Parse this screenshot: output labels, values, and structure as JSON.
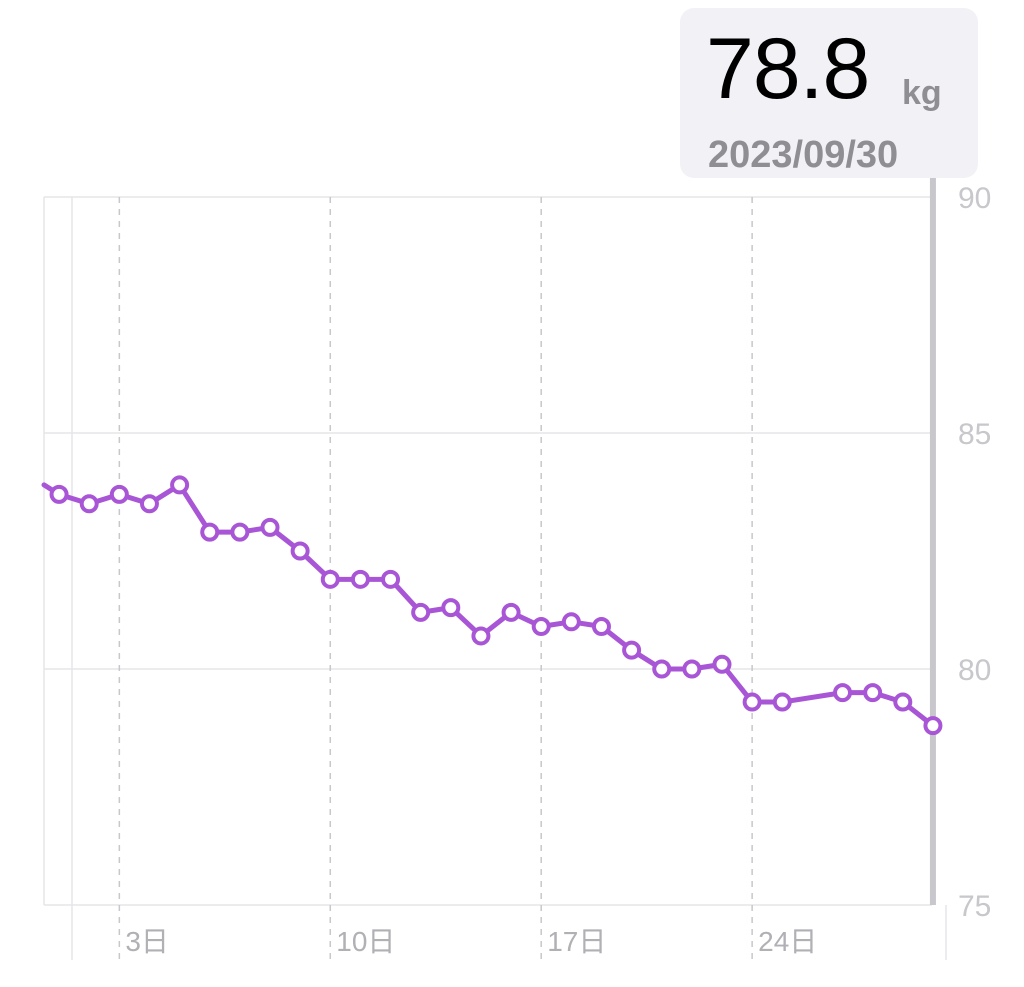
{
  "tooltip": {
    "value": "78.8",
    "unit": "kg",
    "date": "2023/09/30"
  },
  "colors": {
    "series": "#a855d6",
    "grid": "#e5e5ea",
    "dashed_grid": "#c7c7cc",
    "selection_line": "#c7c7cc"
  },
  "chart_data": {
    "type": "line",
    "x_axis_labels": [
      {
        "day": 3,
        "label": "3日"
      },
      {
        "day": 10,
        "label": "10日"
      },
      {
        "day": 17,
        "label": "17日"
      },
      {
        "day": 24,
        "label": "24日"
      }
    ],
    "xlim": [
      0.5,
      30.5
    ],
    "ylim": [
      75,
      90
    ],
    "y_ticks": [
      75,
      80,
      85,
      90
    ],
    "y_axis_position": "right",
    "selected_day": 30,
    "series": [
      {
        "x": [
          1,
          2,
          3,
          4,
          5,
          6,
          7,
          8,
          9,
          10,
          11,
          12,
          13,
          14,
          15,
          16,
          17,
          18,
          19,
          20,
          21,
          22,
          23,
          24,
          25,
          27,
          28,
          29,
          30
        ],
        "y": [
          83.7,
          83.5,
          83.7,
          83.5,
          83.9,
          82.9,
          82.9,
          83.0,
          82.5,
          81.9,
          81.9,
          81.9,
          81.2,
          81.3,
          80.7,
          81.2,
          80.9,
          81.0,
          80.9,
          80.4,
          80.0,
          80.0,
          80.1,
          79.3,
          79.3,
          79.5,
          79.5,
          79.3,
          78.8
        ],
        "lead_in_y": 83.9
      }
    ]
  }
}
